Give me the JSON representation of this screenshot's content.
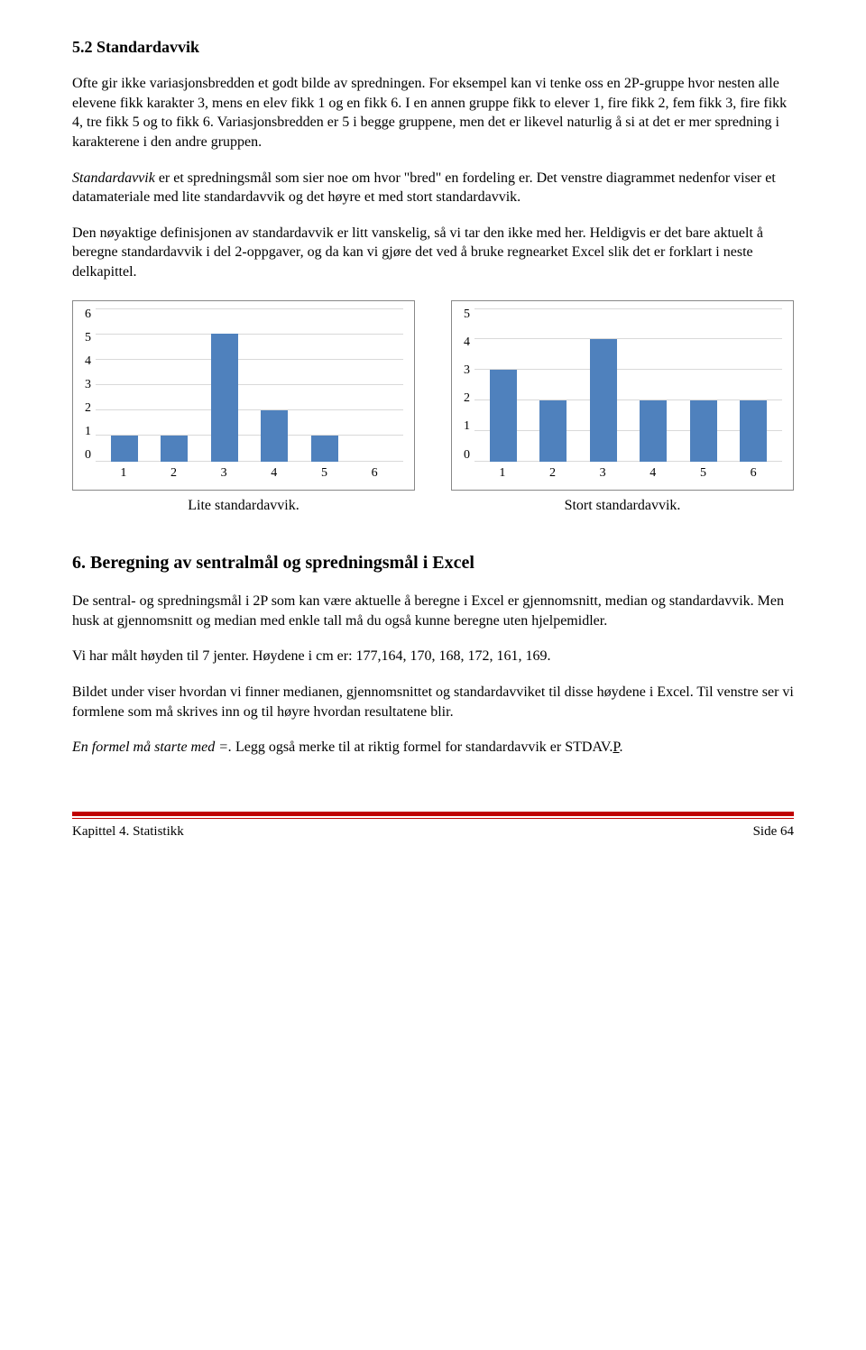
{
  "section_5_2": {
    "title": "5.2 Standardavvik",
    "p1": "Ofte gir ikke variasjonsbredden et godt bilde av spredningen. For eksempel kan vi tenke oss en 2P-gruppe hvor nesten alle elevene fikk karakter 3, mens en elev fikk 1 og en fikk 6. I en annen gruppe fikk to elever 1, fire fikk 2, fem fikk 3, fire fikk 4, tre fikk 5 og to fikk 6. Variasjonsbredden er 5 i begge gruppene, men det er likevel naturlig å si at det er mer spredning i karakterene i den andre gruppen.",
    "p2_italic": "Standardavvik",
    "p2_rest": " er et spredningsmål som sier noe om hvor \"bred\" en fordeling er. Det venstre diagrammet nedenfor viser et datamateriale med lite standardavvik og det høyre et med stort standardavvik.",
    "p3": "Den nøyaktige definisjonen av standardavvik er litt vanskelig, så vi tar den ikke med her. Heldigvis er det bare aktuelt å beregne standardavvik i del 2-oppgaver, og da kan vi gjøre det ved å bruke regnearket Excel slik det er forklart i neste delkapittel."
  },
  "chart_left": {
    "type": "bar",
    "categories": [
      "1",
      "2",
      "3",
      "4",
      "5",
      "6"
    ],
    "values": [
      1,
      1,
      5,
      2,
      1,
      0
    ],
    "ymax": 6,
    "yticks": [
      "0",
      "1",
      "2",
      "3",
      "4",
      "5",
      "6"
    ],
    "bar_color": "#4f81bd",
    "grid_color": "#d9d9d9",
    "background_color": "#ffffff",
    "caption": "Lite standardavvik."
  },
  "chart_right": {
    "type": "bar",
    "categories": [
      "1",
      "2",
      "3",
      "4",
      "5",
      "6"
    ],
    "values": [
      3,
      2,
      4,
      2,
      2,
      2
    ],
    "ymax": 5,
    "yticks": [
      "0",
      "1",
      "2",
      "3",
      "4",
      "5"
    ],
    "bar_color": "#4f81bd",
    "grid_color": "#d9d9d9",
    "background_color": "#ffffff",
    "caption": "Stort standardavvik."
  },
  "section_6": {
    "title": "6.  Beregning av sentralmål og spredningsmål i Excel",
    "p1": "De sentral- og spredningsmål i 2P som kan være aktuelle å beregne i Excel er gjennomsnitt, median og standardavvik. Men husk at gjennomsnitt og median med enkle tall må du også kunne beregne uten hjelpemidler.",
    "p2": "Vi har målt høyden til 7 jenter. Høydene i cm er: 177,164, 170, 168, 172, 161, 169.",
    "p3": "Bildet under viser hvordan vi finner medianen, gjennomsnittet og standardavviket til disse høydene i Excel. Til venstre ser vi formlene som må skrives inn og til høyre hvordan resultatene blir.",
    "p4_italic": "En formel må starte med =.",
    "p4_rest_a": " Legg også merke til at riktig formel for standardavvik er STDAV.",
    "p4_underline": "P",
    "p4_rest_b": "."
  },
  "footer": {
    "left": "Kapittel 4.  Statistikk",
    "right": "Side 64",
    "line_color": "#c00000"
  }
}
